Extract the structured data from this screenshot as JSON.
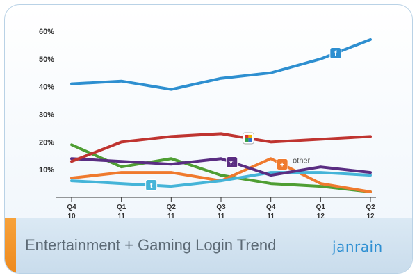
{
  "chart_data": {
    "type": "line",
    "title": "Entertainment + Gaming Login Trend",
    "brand": "janrain",
    "categories": [
      [
        "Q4",
        "10"
      ],
      [
        "Q1",
        "11"
      ],
      [
        "Q2",
        "11"
      ],
      [
        "Q3",
        "11"
      ],
      [
        "Q4",
        "11"
      ],
      [
        "Q1",
        "12"
      ],
      [
        "Q2",
        "12"
      ]
    ],
    "y_ticks": [
      "10%",
      "20%",
      "30%",
      "40%",
      "50%",
      "60%"
    ],
    "ylim": [
      0,
      60
    ],
    "grid": false,
    "series": [
      {
        "icon": "facebook-icon",
        "color": "#2e8fd0",
        "values": [
          41,
          42,
          39,
          43,
          45,
          50,
          57
        ]
      },
      {
        "icon": "google-icon",
        "color": "#bf3430",
        "values": [
          13,
          20,
          22,
          23,
          20,
          21,
          22
        ]
      },
      {
        "icon": "yahoo-icon",
        "color": "#5a2d82",
        "values": [
          14,
          13,
          12,
          14,
          8,
          11,
          9
        ]
      },
      {
        "icon": "twitter-icon",
        "color": "#45b4d8",
        "values": [
          6,
          5,
          4,
          6,
          9,
          9,
          8
        ]
      },
      {
        "icon": "other-icon",
        "name": "other",
        "color": "#ef7a2e",
        "values": [
          7,
          9,
          9,
          6,
          14,
          5,
          2
        ]
      },
      {
        "icon": "myspace-icon",
        "color": "#4f9e33",
        "values": [
          19,
          11,
          14,
          8,
          5,
          4,
          2
        ]
      }
    ]
  }
}
